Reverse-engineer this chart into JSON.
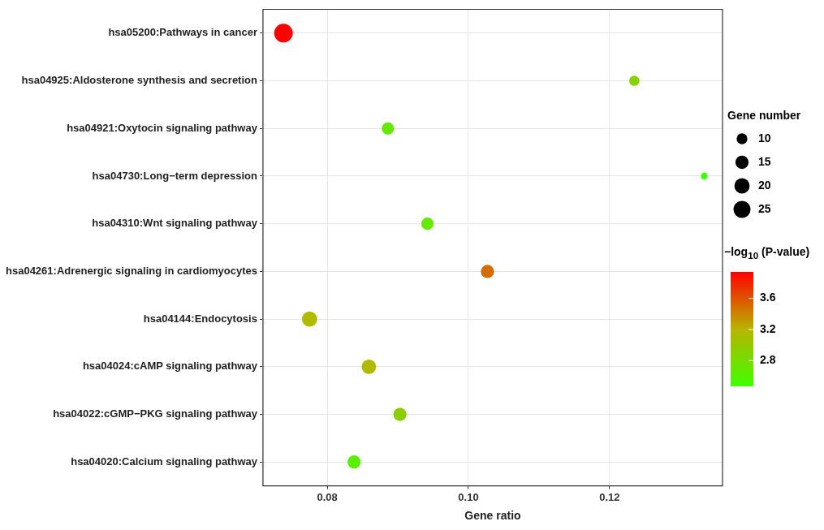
{
  "chart_data": {
    "type": "bubble",
    "orientation": "horizontal",
    "xlabel": "Gene ratio",
    "legend_title": "Gene number",
    "clabel": "−log$_{10}$ (P-value)",
    "categories": [
      "hsa05200:Pathways in cancer",
      "hsa04925:Aldosterone synthesis and secretion",
      "hsa04921:Oxytocin signaling pathway",
      "hsa04730:Long−term depression",
      "hsa04310:Wnt signaling pathway",
      "hsa04261:Adrenergic signaling in cardiomyocytes",
      "hsa04144:Endocytosis",
      "hsa04024:cAMP signaling pathway",
      "hsa04022:cGMP−PKG signaling pathway",
      "hsa04020:Calcium signaling pathway"
    ],
    "values": [
      0.0738,
      0.1235,
      0.0886,
      0.1334,
      0.0942,
      0.1027,
      0.0775,
      0.0859,
      0.0903,
      0.0838
    ],
    "sizes": [
      30,
      9,
      13,
      4,
      13,
      15,
      20,
      18,
      15,
      15
    ],
    "cvalues": [
      3.94,
      2.9,
      2.7,
      2.47,
      2.7,
      3.5,
      3.15,
      3.15,
      2.95,
      2.62
    ],
    "size_legend": [
      10,
      15,
      20,
      25
    ],
    "clim": [
      2.47,
      3.94
    ],
    "cticks": [
      2.8,
      3.2,
      3.6
    ],
    "xlim": [
      0.0709,
      0.136
    ],
    "xticks": [
      0.08,
      {
        "value": 0.1,
        "label": "0.10"
      },
      0.12
    ],
    "grid": true
  }
}
